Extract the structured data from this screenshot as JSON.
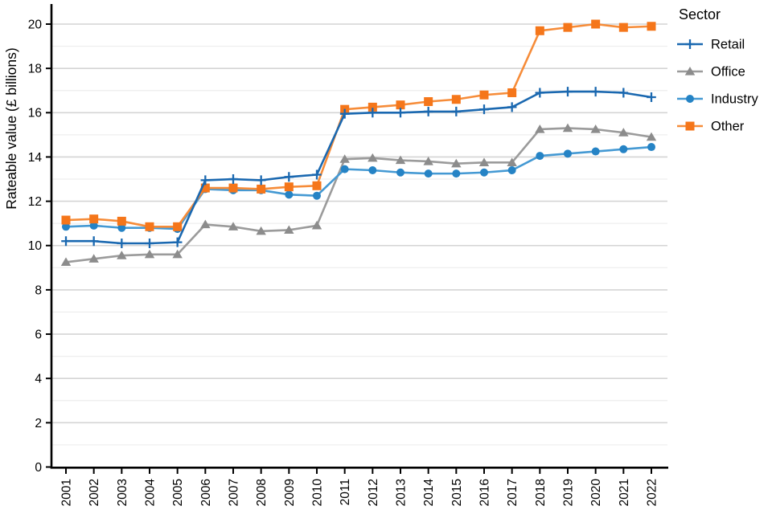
{
  "chart_data": {
    "type": "line",
    "title": "",
    "ylabel": "Rateable value (£ billions)",
    "xlabel": "",
    "legend_title": "Sector",
    "legend_position": "right",
    "grid": "horizontal",
    "ylim": [
      0,
      20
    ],
    "ytick_labeled_step": 2,
    "ytick_minor_step": 1,
    "x": [
      2001,
      2002,
      2003,
      2004,
      2005,
      2006,
      2007,
      2008,
      2009,
      2010,
      2011,
      2012,
      2013,
      2014,
      2015,
      2016,
      2017,
      2018,
      2019,
      2020,
      2021,
      2022
    ],
    "series": [
      {
        "name": "Retail",
        "marker": "plus",
        "line_color": "#1a68b0",
        "marker_color": "#1a68b0",
        "values": [
          10.2,
          10.2,
          10.1,
          10.1,
          10.15,
          12.95,
          13.0,
          12.95,
          13.1,
          13.2,
          15.95,
          16.0,
          16.0,
          16.05,
          16.05,
          16.15,
          16.25,
          16.9,
          16.95,
          16.95,
          16.9,
          16.7
        ]
      },
      {
        "name": "Office",
        "marker": "triangle",
        "line_color": "#9b9b9b",
        "marker_color": "#8c8c8c",
        "values": [
          9.25,
          9.4,
          9.55,
          9.6,
          9.6,
          10.95,
          10.85,
          10.65,
          10.7,
          10.9,
          13.9,
          13.95,
          13.85,
          13.8,
          13.7,
          13.75,
          13.75,
          15.25,
          15.3,
          15.25,
          15.1,
          14.9
        ]
      },
      {
        "name": "Industry",
        "marker": "circle",
        "line_color": "#4499d3",
        "marker_color": "#2583c5",
        "values": [
          10.85,
          10.9,
          10.8,
          10.8,
          10.75,
          12.55,
          12.5,
          12.5,
          12.3,
          12.25,
          13.45,
          13.4,
          13.3,
          13.25,
          13.25,
          13.3,
          13.4,
          14.05,
          14.15,
          14.25,
          14.35,
          14.45
        ]
      },
      {
        "name": "Other",
        "marker": "square",
        "line_color": "#f68c39",
        "marker_color": "#f5761a",
        "values": [
          11.15,
          11.2,
          11.1,
          10.85,
          10.85,
          12.6,
          12.6,
          12.55,
          12.65,
          12.7,
          16.15,
          16.25,
          16.35,
          16.5,
          16.6,
          16.8,
          16.9,
          19.7,
          19.85,
          20.0,
          19.85,
          19.9
        ]
      }
    ]
  },
  "colors": {
    "background": "#ffffff",
    "axis": "#000000",
    "grid_major": "#d4d4d4",
    "grid_minor": "#ededed",
    "tick_text": "#000000"
  }
}
